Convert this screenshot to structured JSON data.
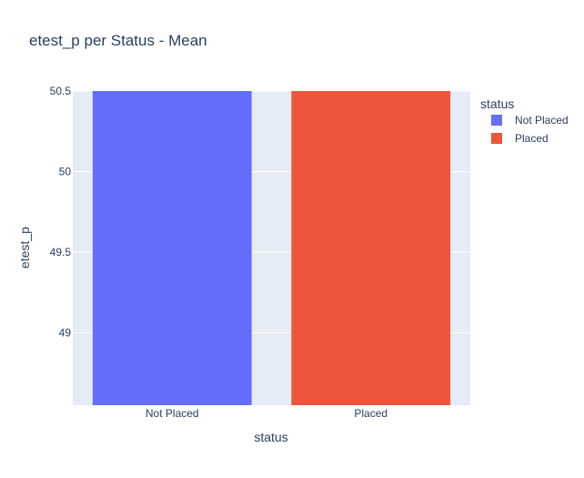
{
  "chart_data": {
    "type": "bar",
    "title": "etest_p per Status - Mean",
    "xlabel": "status",
    "ylabel": "etest_p",
    "categories": [
      "Not Placed",
      "Placed"
    ],
    "values": [
      50.5,
      50.5
    ],
    "colors": [
      "#636efa",
      "#ef553b"
    ],
    "ylim": [
      48.55,
      50.5
    ],
    "yticks": [
      49,
      49.5,
      50,
      50.5
    ],
    "ytick_labels": [
      "49",
      "49.5",
      "50",
      "50.5"
    ],
    "grid": true,
    "plot_background": "#e5ecf6",
    "legend": {
      "title": "status",
      "placement": "top-right",
      "entries": [
        {
          "label": "Not Placed",
          "color": "#636efa"
        },
        {
          "label": "Placed",
          "color": "#ef553b"
        }
      ]
    }
  }
}
